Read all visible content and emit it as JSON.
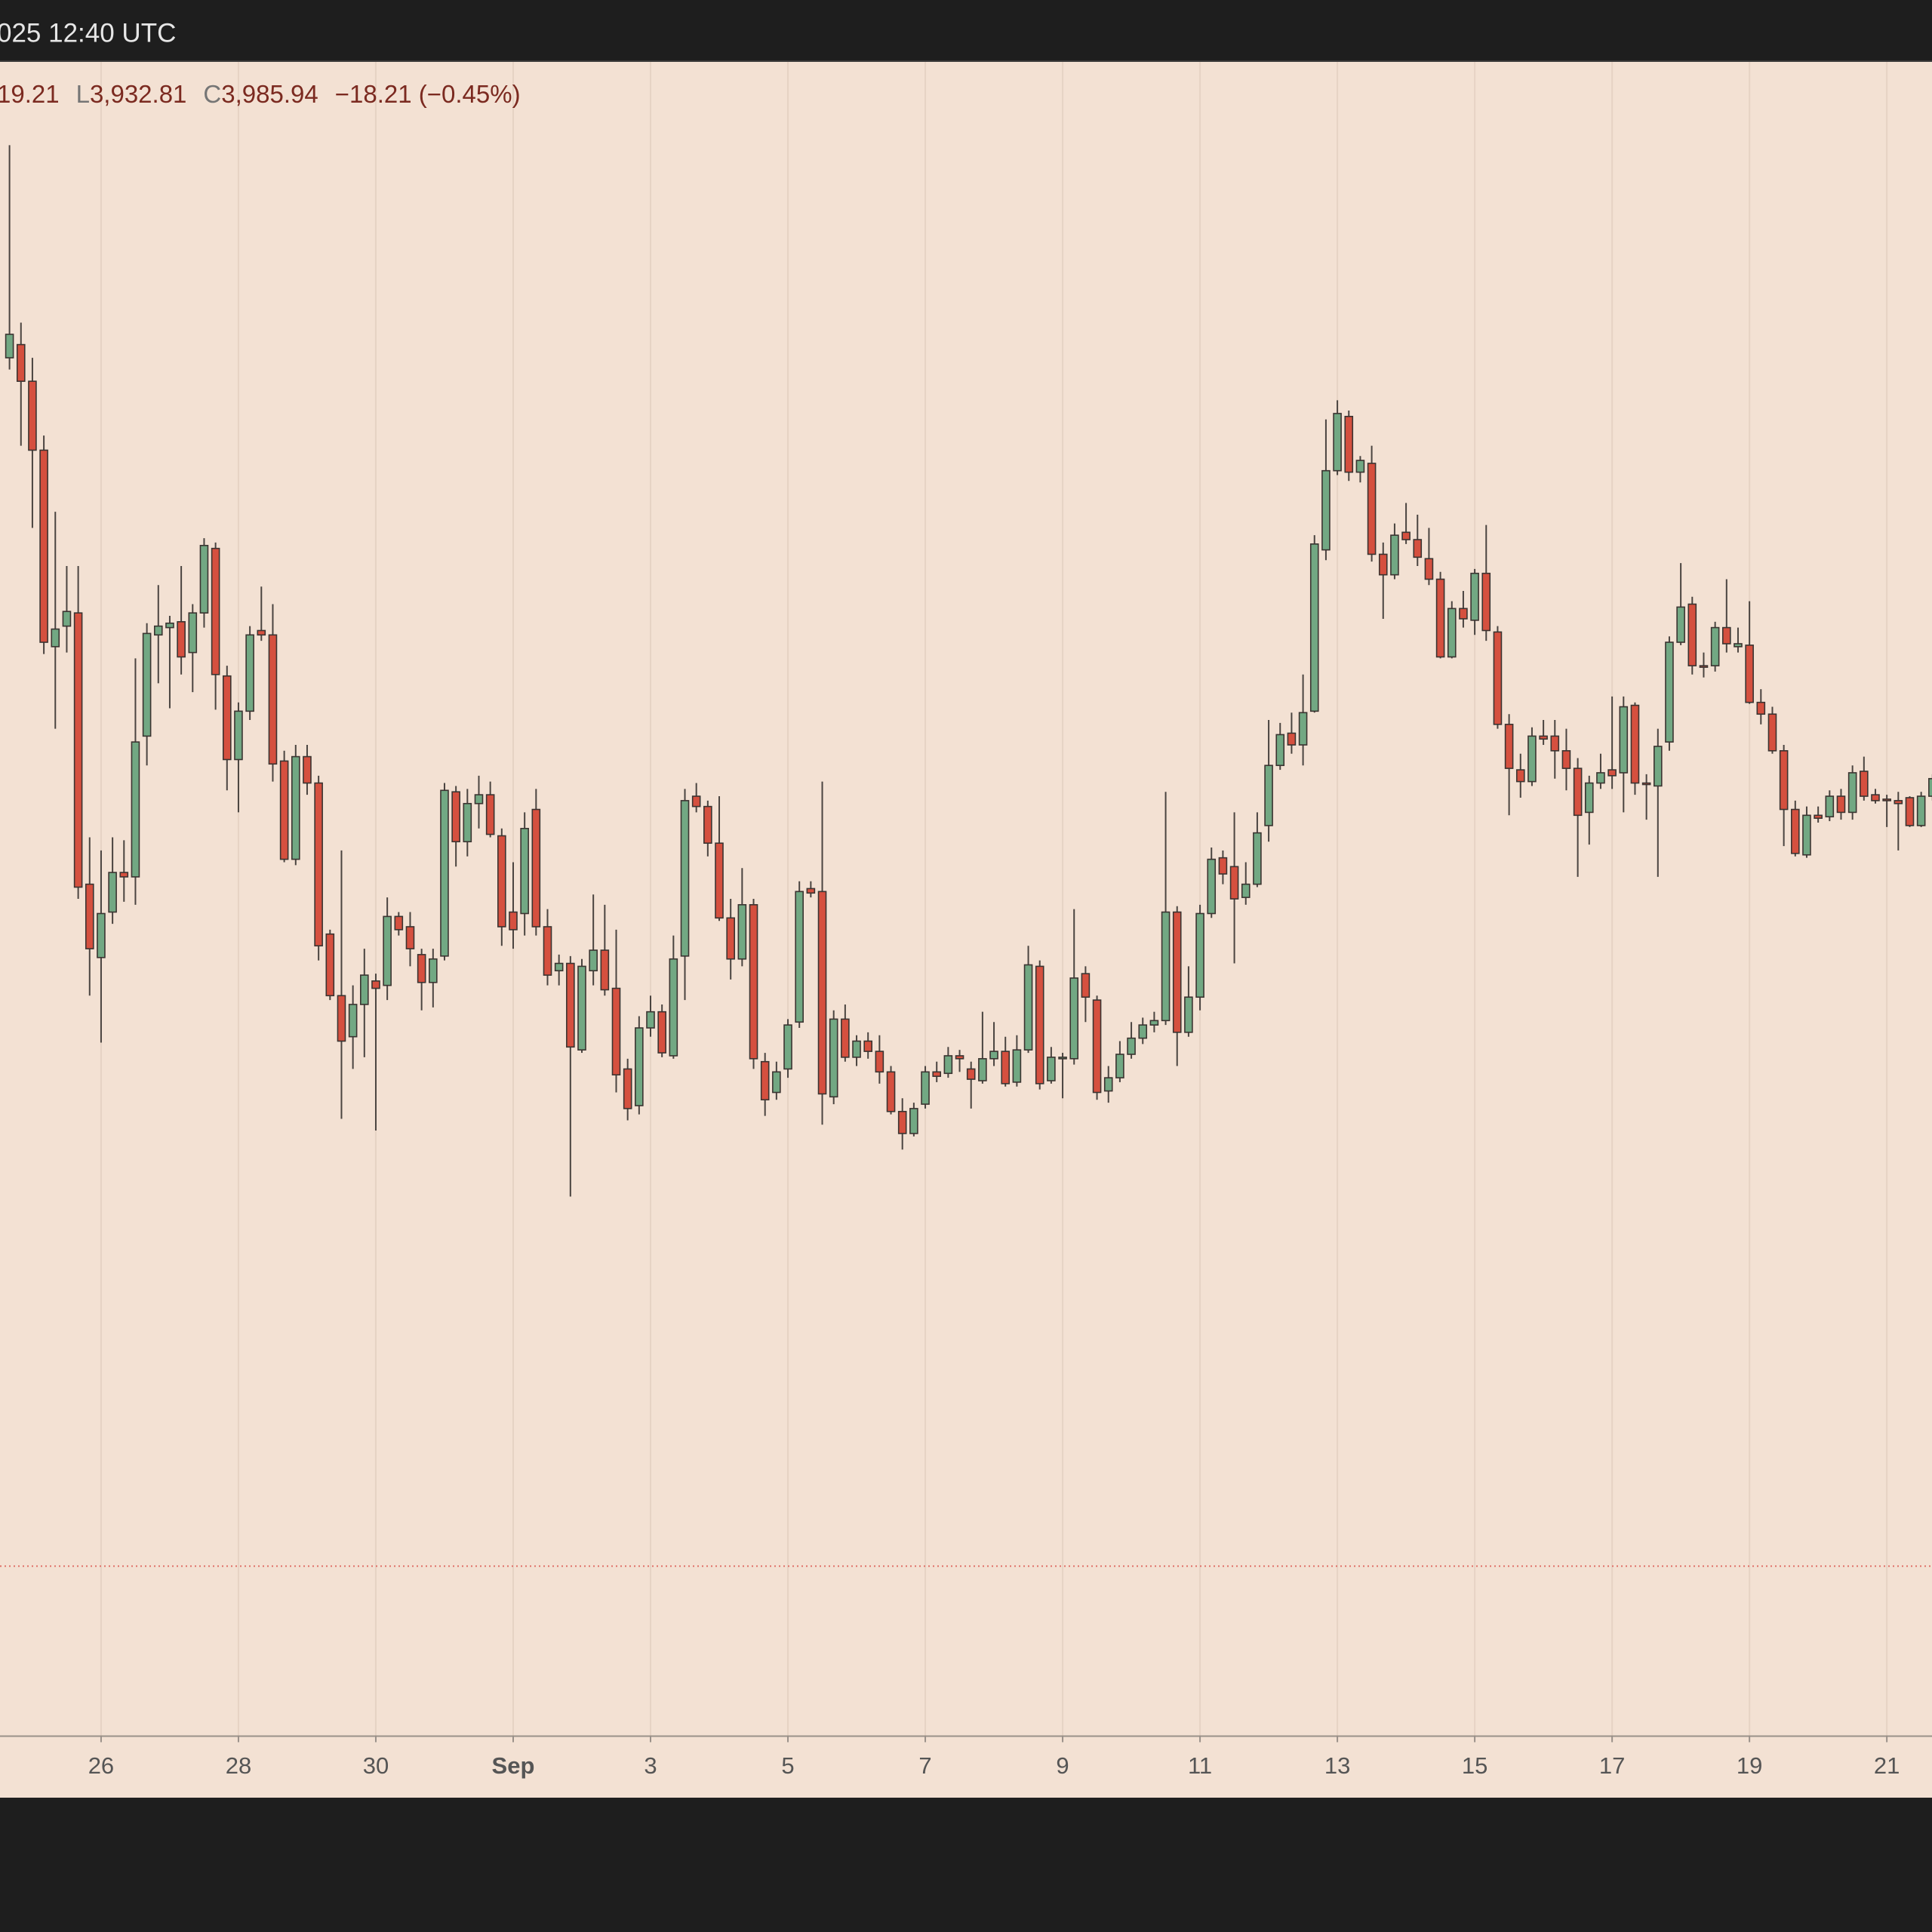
{
  "header": "025 12:40 UTC",
  "legend": {
    "first_value": "19.21",
    "low_key": "L",
    "low": "3,932.81",
    "close_key": "C",
    "close": {
      "value": 3985.94,
      "label": "3,985.94"
    },
    "change": "−18.21 (−0.45%)"
  },
  "chart_data": {
    "type": "candlestick",
    "up_color": "#72a883",
    "down_color": "#d5503f",
    "price_line_color": "#e0736a",
    "grid": true,
    "ylim": [
      3870,
      5012
    ],
    "categories": [
      null,
      null,
      null,
      null,
      null,
      null,
      null,
      null,
      "26",
      null,
      null,
      null,
      null,
      null,
      null,
      null,
      null,
      null,
      null,
      null,
      "28",
      null,
      null,
      null,
      null,
      null,
      null,
      null,
      null,
      null,
      null,
      null,
      "30",
      null,
      null,
      null,
      null,
      null,
      null,
      null,
      null,
      null,
      null,
      null,
      "Sep",
      null,
      null,
      null,
      null,
      null,
      null,
      null,
      null,
      null,
      null,
      null,
      "3",
      null,
      null,
      null,
      null,
      null,
      null,
      null,
      null,
      null,
      null,
      null,
      "5",
      null,
      null,
      null,
      null,
      null,
      null,
      null,
      null,
      null,
      null,
      null,
      "7",
      null,
      null,
      null,
      null,
      null,
      null,
      null,
      null,
      null,
      null,
      null,
      "9",
      null,
      null,
      null,
      null,
      null,
      null,
      null,
      null,
      null,
      null,
      null,
      "11",
      null,
      null,
      null,
      null,
      null,
      null,
      null,
      null,
      null,
      null,
      null,
      "13",
      null,
      null,
      null,
      null,
      null,
      null,
      null,
      null,
      null,
      null,
      null,
      "15",
      null,
      null,
      null,
      null,
      null,
      null,
      null,
      null,
      null,
      null,
      null,
      "17",
      null,
      null,
      null,
      null,
      null,
      null,
      null,
      null,
      null,
      null,
      null,
      "19",
      null,
      null,
      null,
      null,
      null,
      null,
      null,
      null,
      null,
      null,
      null,
      "21",
      null,
      null,
      null,
      null
    ],
    "open": [
      4810,
      4819,
      4794,
      4747,
      4613,
      4627,
      4636,
      4451,
      4401,
      4432,
      4459,
      4456,
      4552,
      4621,
      4626,
      4630,
      4609,
      4636,
      4680,
      4593,
      4536,
      4569,
      4624,
      4621,
      4535,
      4468,
      4538,
      4520,
      4417,
      4375,
      4347,
      4369,
      4385,
      4382,
      4429,
      4422,
      4403,
      4384,
      4402,
      4514,
      4480,
      4506,
      4512,
      4484,
      4432,
      4431,
      4502,
      4422,
      4392,
      4397,
      4338,
      4392,
      4406,
      4380,
      4325,
      4300,
      4353,
      4364,
      4334,
      4402,
      4511,
      4504,
      4479,
      4428,
      4400,
      4437,
      4330,
      4309,
      4325,
      4357,
      4448,
      4446,
      4306,
      4359,
      4333,
      4344,
      4337,
      4323,
      4296,
      4281,
      4301,
      4323,
      4322,
      4334,
      4325,
      4317,
      4332,
      4337,
      4316,
      4338,
      4395,
      4317,
      4332,
      4332,
      4390,
      4372,
      4310,
      4319,
      4335,
      4346,
      4355,
      4358,
      4432,
      4350,
      4374,
      4431,
      4469,
      4463,
      4442,
      4451,
      4491,
      4532,
      4554,
      4546,
      4569,
      4679,
      4733,
      4770,
      4732,
      4738,
      4676,
      4662,
      4691,
      4686,
      4673,
      4659,
      4606,
      4639,
      4631,
      4663,
      4623,
      4560,
      4529,
      4521,
      4552,
      4552,
      4542,
      4530,
      4500,
      4520,
      4529,
      4527,
      4573,
      4520,
      4518,
      4548,
      4616,
      4642,
      4600,
      4600,
      4626,
      4613,
      4614,
      4575,
      4567,
      4542,
      4502,
      4471,
      4498,
      4497,
      4511,
      4500,
      4528,
      4512,
      4509,
      4508,
      4510,
      4491,
      4511
    ],
    "high": [
      4955,
      4834,
      4810,
      4757,
      4705,
      4668,
      4668,
      4483,
      4474,
      4483,
      4481,
      4605,
      4629,
      4655,
      4634,
      4668,
      4642,
      4687,
      4684,
      4600,
      4575,
      4627,
      4654,
      4642,
      4542,
      4546,
      4546,
      4525,
      4420,
      4474,
      4382,
      4407,
      4390,
      4442,
      4432,
      4432,
      4407,
      4407,
      4520,
      4518,
      4516,
      4525,
      4521,
      4489,
      4466,
      4500,
      4516,
      4434,
      4403,
      4402,
      4400,
      4444,
      4437,
      4420,
      4332,
      4361,
      4375,
      4369,
      4416,
      4516,
      4520,
      4508,
      4511,
      4441,
      4462,
      4441,
      4336,
      4330,
      4359,
      4453,
      4453,
      4521,
      4365,
      4369,
      4348,
      4350,
      4348,
      4327,
      4305,
      4302,
      4327,
      4330,
      4340,
      4338,
      4330,
      4364,
      4357,
      4347,
      4348,
      4409,
      4399,
      4340,
      4336,
      4434,
      4395,
      4375,
      4327,
      4344,
      4357,
      4360,
      4364,
      4514,
      4436,
      4395,
      4437,
      4476,
      4474,
      4500,
      4466,
      4500,
      4563,
      4561,
      4568,
      4594,
      4689,
      4768,
      4781,
      4774,
      4743,
      4750,
      4684,
      4697,
      4711,
      4703,
      4694,
      4664,
      4644,
      4651,
      4666,
      4696,
      4627,
      4567,
      4540,
      4558,
      4563,
      4563,
      4557,
      4537,
      4525,
      4540,
      4579,
      4579,
      4575,
      4526,
      4557,
      4620,
      4670,
      4647,
      4609,
      4630,
      4659,
      4626,
      4644,
      4584,
      4572,
      4546,
      4508,
      4504,
      4504,
      4515,
      4516,
      4532,
      4538,
      4516,
      4512,
      4514,
      4511,
      4514,
      4526
    ],
    "low": [
      4802,
      4750,
      4694,
      4608,
      4557,
      4609,
      4441,
      4375,
      4343,
      4424,
      4439,
      4437,
      4532,
      4588,
      4571,
      4594,
      4582,
      4626,
      4570,
      4515,
      4500,
      4563,
      4617,
      4521,
      4466,
      4464,
      4512,
      4399,
      4372,
      4291,
      4325,
      4333,
      4283,
      4372,
      4416,
      4395,
      4365,
      4367,
      4399,
      4463,
      4470,
      4489,
      4483,
      4409,
      4407,
      4416,
      4416,
      4382,
      4382,
      4238,
      4336,
      4382,
      4375,
      4309,
      4290,
      4294,
      4347,
      4333,
      4332,
      4372,
      4500,
      4470,
      4426,
      4386,
      4395,
      4325,
      4293,
      4304,
      4319,
      4353,
      4442,
      4287,
      4301,
      4330,
      4327,
      4332,
      4315,
      4294,
      4270,
      4279,
      4298,
      4316,
      4319,
      4323,
      4298,
      4315,
      4327,
      4313,
      4313,
      4336,
      4311,
      4315,
      4305,
      4328,
      4357,
      4304,
      4302,
      4316,
      4332,
      4342,
      4350,
      4355,
      4327,
      4347,
      4365,
      4428,
      4451,
      4397,
      4437,
      4449,
      4480,
      4529,
      4540,
      4532,
      4568,
      4672,
      4730,
      4726,
      4725,
      4671,
      4632,
      4659,
      4683,
      4668,
      4655,
      4605,
      4605,
      4626,
      4621,
      4617,
      4557,
      4498,
      4510,
      4518,
      4546,
      4523,
      4515,
      4456,
      4478,
      4516,
      4516,
      4500,
      4512,
      4495,
      4456,
      4542,
      4614,
      4594,
      4592,
      4596,
      4609,
      4609,
      4574,
      4560,
      4540,
      4477,
      4470,
      4469,
      4493,
      4494,
      4495,
      4495,
      4508,
      4506,
      4490,
      4474,
      4490,
      4490,
      4508
    ],
    "close": [
      4826,
      4794,
      4747,
      4616,
      4625,
      4637,
      4449,
      4407,
      4431,
      4459,
      4456,
      4548,
      4622,
      4627,
      4629,
      4606,
      4636,
      4682,
      4594,
      4536,
      4569,
      4621,
      4621,
      4533,
      4468,
      4538,
      4520,
      4409,
      4375,
      4344,
      4369,
      4389,
      4380,
      4429,
      4420,
      4407,
      4384,
      4400,
      4515,
      4480,
      4506,
      4512,
      4485,
      4422,
      4420,
      4489,
      4422,
      4389,
      4397,
      4340,
      4395,
      4406,
      4379,
      4321,
      4298,
      4353,
      4364,
      4336,
      4400,
      4508,
      4504,
      4479,
      4428,
      4400,
      4437,
      4332,
      4304,
      4323,
      4355,
      4446,
      4445,
      4308,
      4359,
      4333,
      4344,
      4337,
      4323,
      4296,
      4281,
      4298,
      4323,
      4320,
      4334,
      4332,
      4318,
      4332,
      4337,
      4315,
      4338,
      4396,
      4315,
      4333,
      4333,
      4387,
      4374,
      4309,
      4319,
      4335,
      4346,
      4355,
      4358,
      4432,
      4350,
      4374,
      4431,
      4468,
      4458,
      4441,
      4451,
      4486,
      4532,
      4553,
      4546,
      4568,
      4683,
      4733,
      4772,
      4732,
      4740,
      4676,
      4662,
      4689,
      4686,
      4674,
      4659,
      4606,
      4639,
      4632,
      4663,
      4624,
      4560,
      4530,
      4521,
      4552,
      4550,
      4542,
      4530,
      4498,
      4520,
      4527,
      4525,
      4572,
      4520,
      4519,
      4545,
      4616,
      4640,
      4600,
      4599,
      4626,
      4615,
      4615,
      4575,
      4567,
      4542,
      4502,
      4472,
      4498,
      4496,
      4511,
      4500,
      4527,
      4511,
      4508,
      4508,
      4506,
      4491,
      4511,
      4523
    ]
  }
}
